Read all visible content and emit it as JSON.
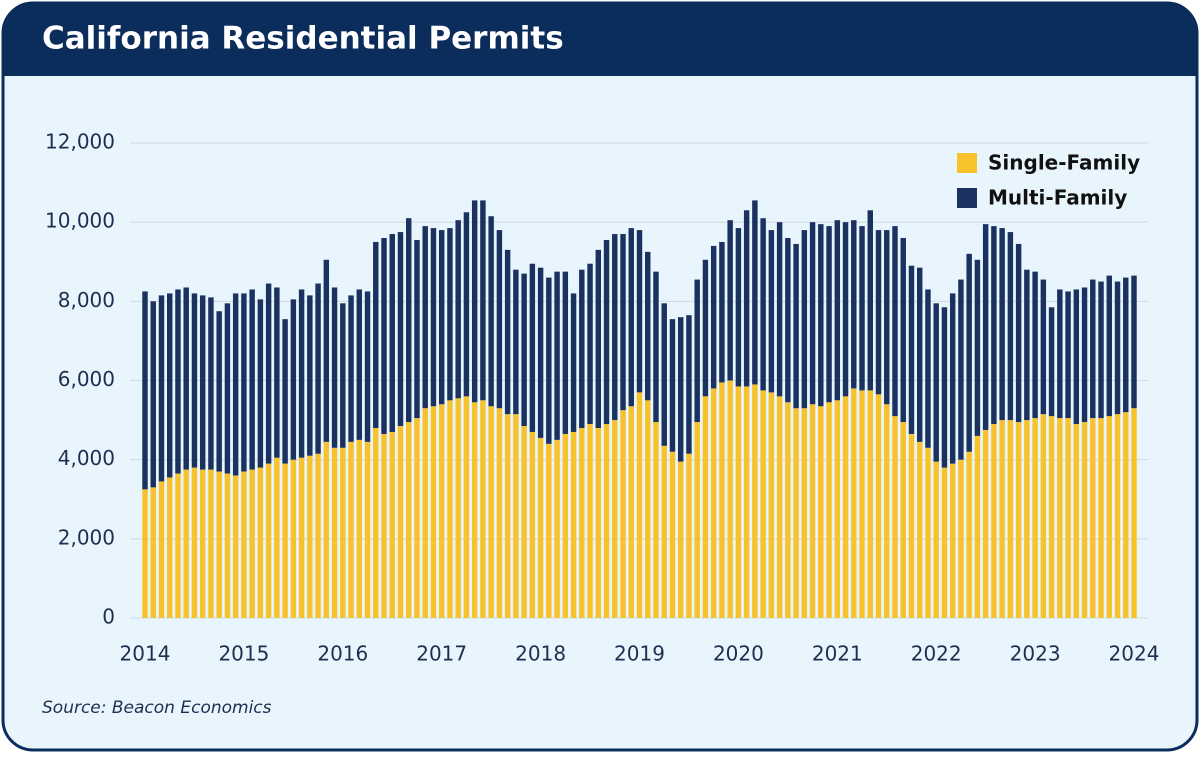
{
  "chart_data": {
    "type": "stacked_bar",
    "title": "California Residential Permits",
    "source": "Source: Beacon Economics",
    "categories": [
      "2014",
      null,
      null,
      null,
      null,
      null,
      null,
      null,
      null,
      null,
      null,
      null,
      "2015",
      null,
      null,
      null,
      null,
      null,
      null,
      null,
      null,
      null,
      null,
      null,
      "2016",
      null,
      null,
      null,
      null,
      null,
      null,
      null,
      null,
      null,
      null,
      null,
      "2017",
      null,
      null,
      null,
      null,
      null,
      null,
      null,
      null,
      null,
      null,
      null,
      "2018",
      null,
      null,
      null,
      null,
      null,
      null,
      null,
      null,
      null,
      null,
      null,
      "2019",
      null,
      null,
      null,
      null,
      null,
      null,
      null,
      null,
      null,
      null,
      null,
      "2020",
      null,
      null,
      null,
      null,
      null,
      null,
      null,
      null,
      null,
      null,
      null,
      "2021",
      null,
      null,
      null,
      null,
      null,
      null,
      null,
      null,
      null,
      null,
      null,
      "2022",
      null,
      null,
      null,
      null,
      null,
      null,
      null,
      null,
      null,
      null,
      null,
      "2023",
      null,
      null,
      null,
      null,
      null,
      null,
      null,
      null,
      null,
      null,
      null,
      "2024"
    ],
    "series": [
      {
        "name": "Single-Family",
        "color": "#f8c22d",
        "values": [
          3250,
          3300,
          3450,
          3550,
          3650,
          3750,
          3800,
          3750,
          3750,
          3700,
          3650,
          3600,
          3700,
          3750,
          3800,
          3900,
          4050,
          3900,
          4000,
          4050,
          4100,
          4150,
          4450,
          4300,
          4300,
          4450,
          4500,
          4450,
          4800,
          4650,
          4700,
          4850,
          4950,
          5050,
          5300,
          5350,
          5400,
          5500,
          5550,
          5600,
          5450,
          5500,
          5350,
          5300,
          5150,
          5150,
          4850,
          4700,
          4550,
          4400,
          4500,
          4650,
          4700,
          4800,
          4900,
          4800,
          4900,
          5000,
          5250,
          5350,
          5700,
          5500,
          4950,
          4350,
          4200,
          3950,
          4150,
          4950,
          5600,
          5800,
          5950,
          6000,
          5850,
          5850,
          5900,
          5750,
          5700,
          5600,
          5450,
          5300,
          5300,
          5400,
          5350,
          5450,
          5500,
          5600,
          5800,
          5750,
          5750,
          5650,
          5400,
          5100,
          4950,
          4650,
          4450,
          4300,
          3950,
          3800,
          3900,
          4000,
          4200,
          4600,
          4750,
          4900,
          5000,
          5000,
          4950,
          5000,
          5050,
          5150,
          5100,
          5050,
          5050,
          4900,
          4950,
          5050,
          5050,
          5100,
          5150,
          5200,
          5300
        ]
      },
      {
        "name": "Multi-Family",
        "color": "#1b3261",
        "values": [
          5000,
          4700,
          4700,
          4650,
          4650,
          4600,
          4400,
          4400,
          4350,
          4050,
          4300,
          4600,
          4500,
          4550,
          4250,
          4550,
          4300,
          3650,
          4050,
          4250,
          4050,
          4300,
          4600,
          4050,
          3650,
          3700,
          3800,
          3800,
          4700,
          4950,
          5000,
          4900,
          5150,
          4500,
          4600,
          4500,
          4400,
          4350,
          4500,
          4650,
          5100,
          5050,
          4800,
          4500,
          4150,
          3650,
          3850,
          4250,
          4300,
          4200,
          4250,
          4100,
          3500,
          4000,
          4050,
          4500,
          4650,
          4700,
          4450,
          4500,
          4100,
          3750,
          3800,
          3600,
          3350,
          3650,
          3500,
          3600,
          3450,
          3600,
          3550,
          4050,
          4000,
          4450,
          4650,
          4350,
          4100,
          4400,
          4150,
          4150,
          4500,
          4600,
          4600,
          4450,
          4550,
          4400,
          4250,
          4150,
          4550,
          4150,
          4400,
          4800,
          4650,
          4250,
          4400,
          4000,
          4000,
          4050,
          4300,
          4550,
          5000,
          4450,
          5200,
          5000,
          4850,
          4750,
          4500,
          3800,
          3700,
          3400,
          2750,
          3250,
          3200,
          3400,
          3400,
          3500,
          3450,
          3550,
          3350,
          3400,
          3350
        ]
      }
    ],
    "ylim": [
      0,
      12000
    ],
    "yticks": [
      0,
      {
        "value": 2000,
        "label": "2,000"
      },
      {
        "value": 4000,
        "label": "4,000"
      },
      {
        "value": 6000,
        "label": "6,000"
      },
      {
        "value": 8000,
        "label": "8,000"
      },
      {
        "value": 10000,
        "label": "10,000"
      },
      {
        "value": 12000,
        "label": "12,000"
      }
    ],
    "grid": true,
    "legend": "upper right"
  }
}
